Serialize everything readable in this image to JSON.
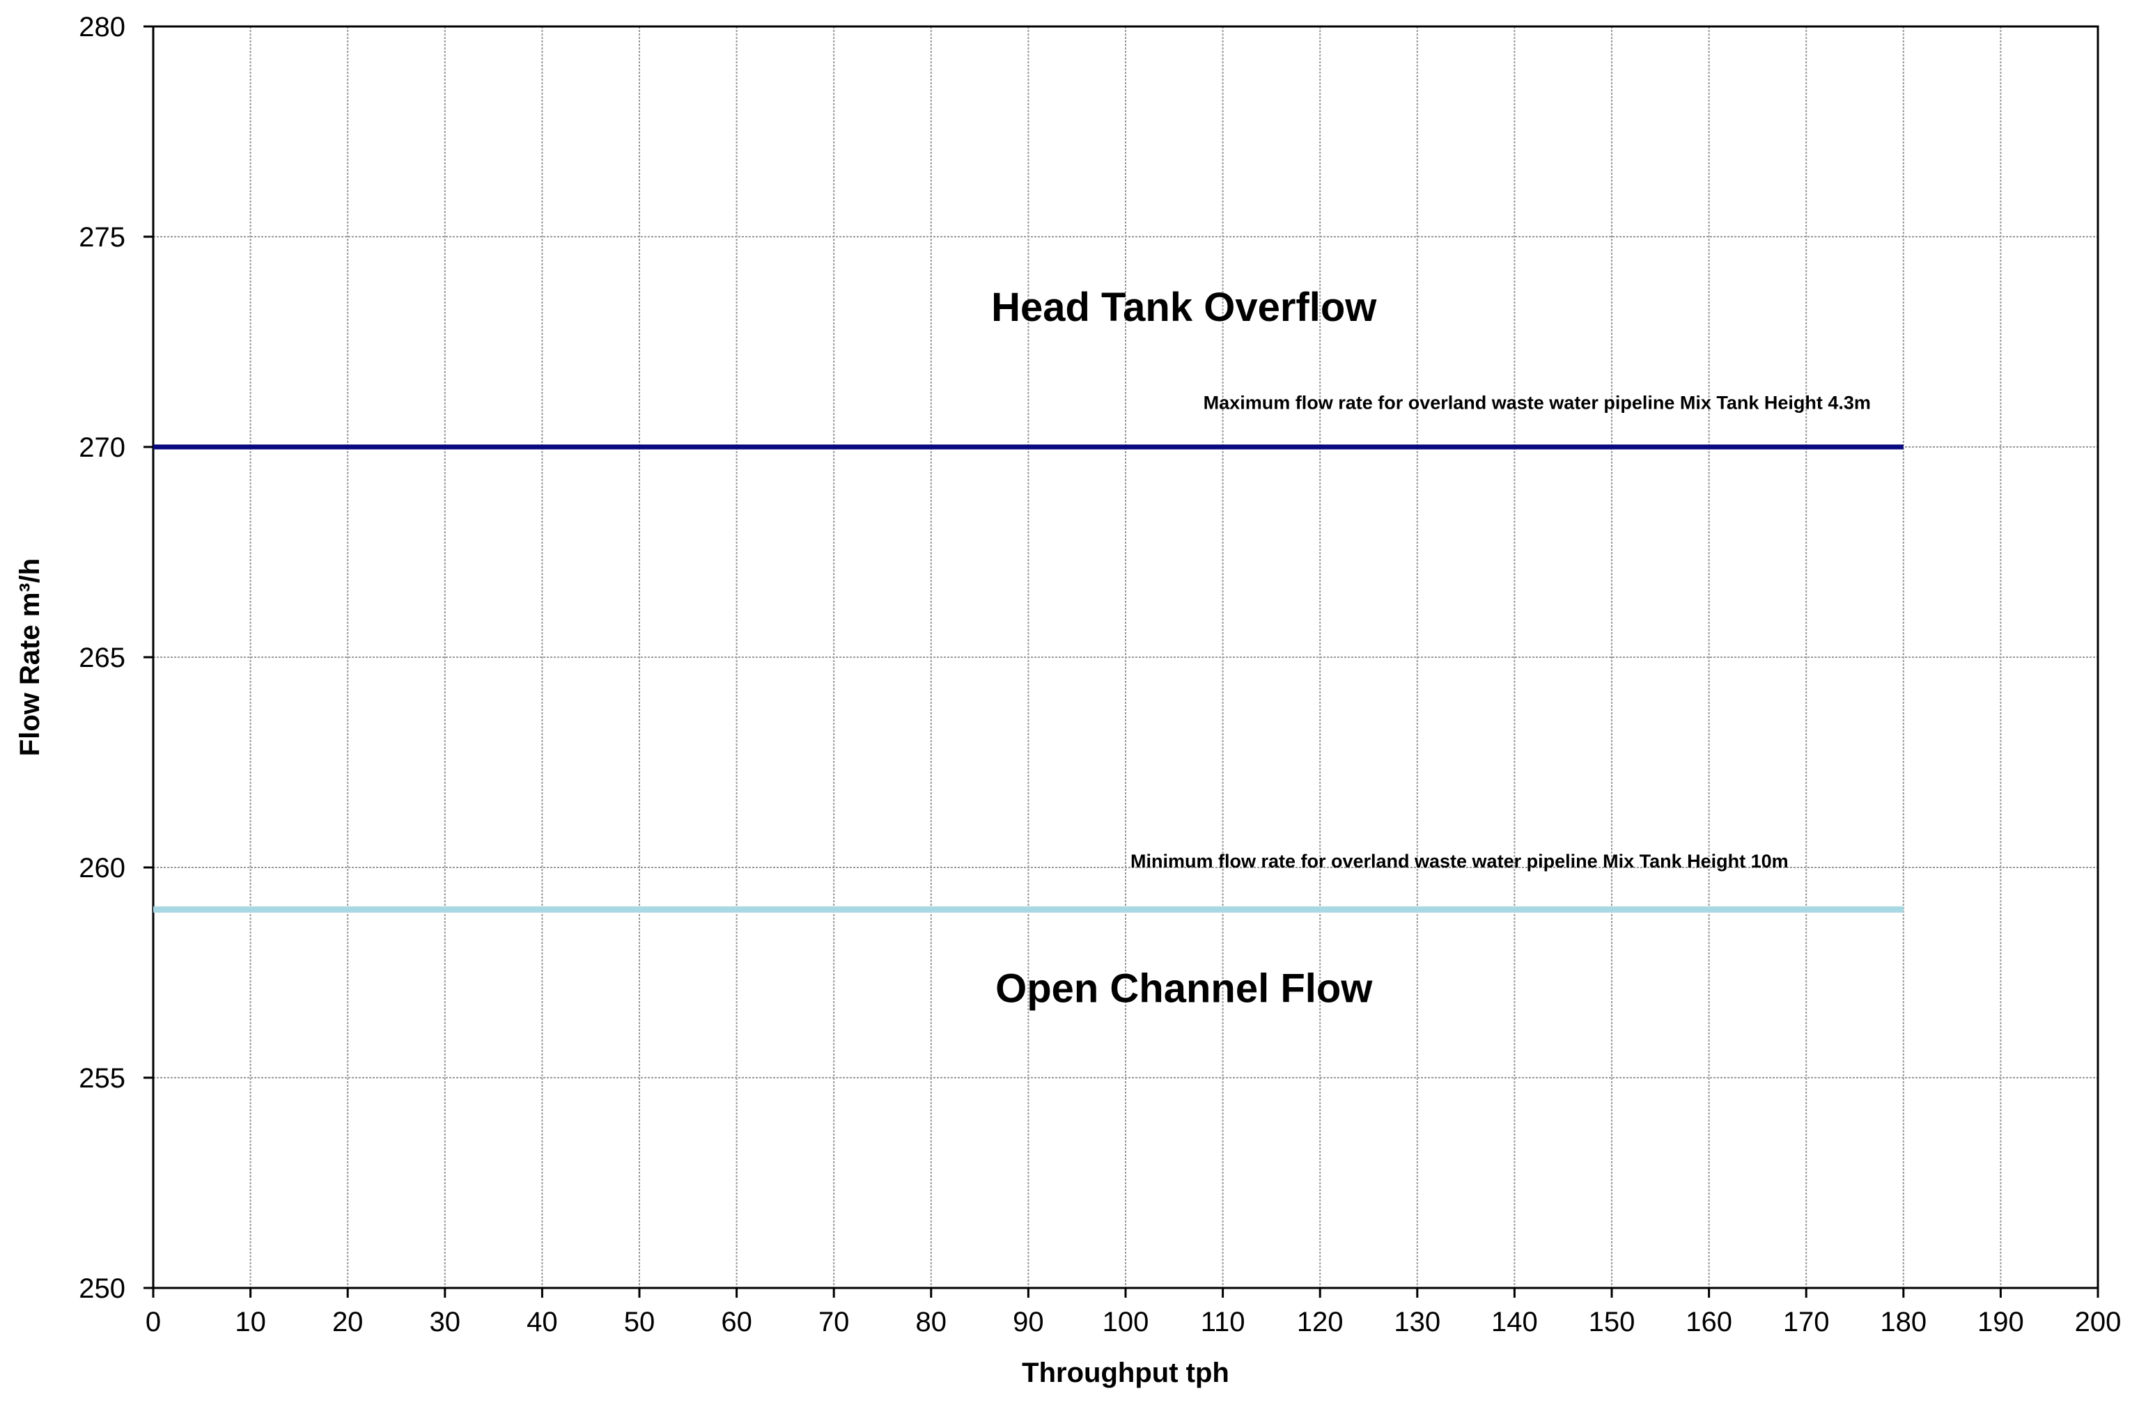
{
  "chart_data": {
    "type": "line",
    "title": "",
    "xlabel": "Throughput tph",
    "ylabel": "Flow Rate m³/h",
    "xlim": [
      0,
      200
    ],
    "ylim": [
      250,
      280
    ],
    "x_ticks": [
      0,
      10,
      20,
      30,
      40,
      50,
      60,
      70,
      80,
      90,
      100,
      110,
      120,
      130,
      140,
      150,
      160,
      170,
      180,
      190,
      200
    ],
    "y_ticks": [
      250,
      255,
      260,
      265,
      270,
      275,
      280
    ],
    "grid": true,
    "legend": "none",
    "series": [
      {
        "name": "Maximum flow rate for overland waste water pipeline Mix Tank Height 4.3m",
        "color": "#0a0a80",
        "x": [
          0,
          180
        ],
        "y": [
          270,
          270
        ]
      },
      {
        "name": "Minimum flow rate for overland waste water pipeline Mix Tank Height 10m",
        "color": "#a8d8e4",
        "x": [
          0,
          180
        ],
        "y": [
          259,
          259
        ]
      }
    ],
    "annotations": [
      {
        "text": "Head Tank Overflow",
        "x": 106,
        "y": 273,
        "style": "region"
      },
      {
        "text": "Open Channel Flow",
        "x": 106,
        "y": 256.8,
        "style": "region"
      },
      {
        "text": "Maximum flow rate for overland waste water pipeline Mix Tank Height 4.3m",
        "x": 108,
        "y": 270.9,
        "style": "series"
      },
      {
        "text": "Minimum flow rate for overland waste water pipeline Mix Tank Height 10m",
        "x": 100.5,
        "y": 260.0,
        "style": "series"
      }
    ]
  }
}
